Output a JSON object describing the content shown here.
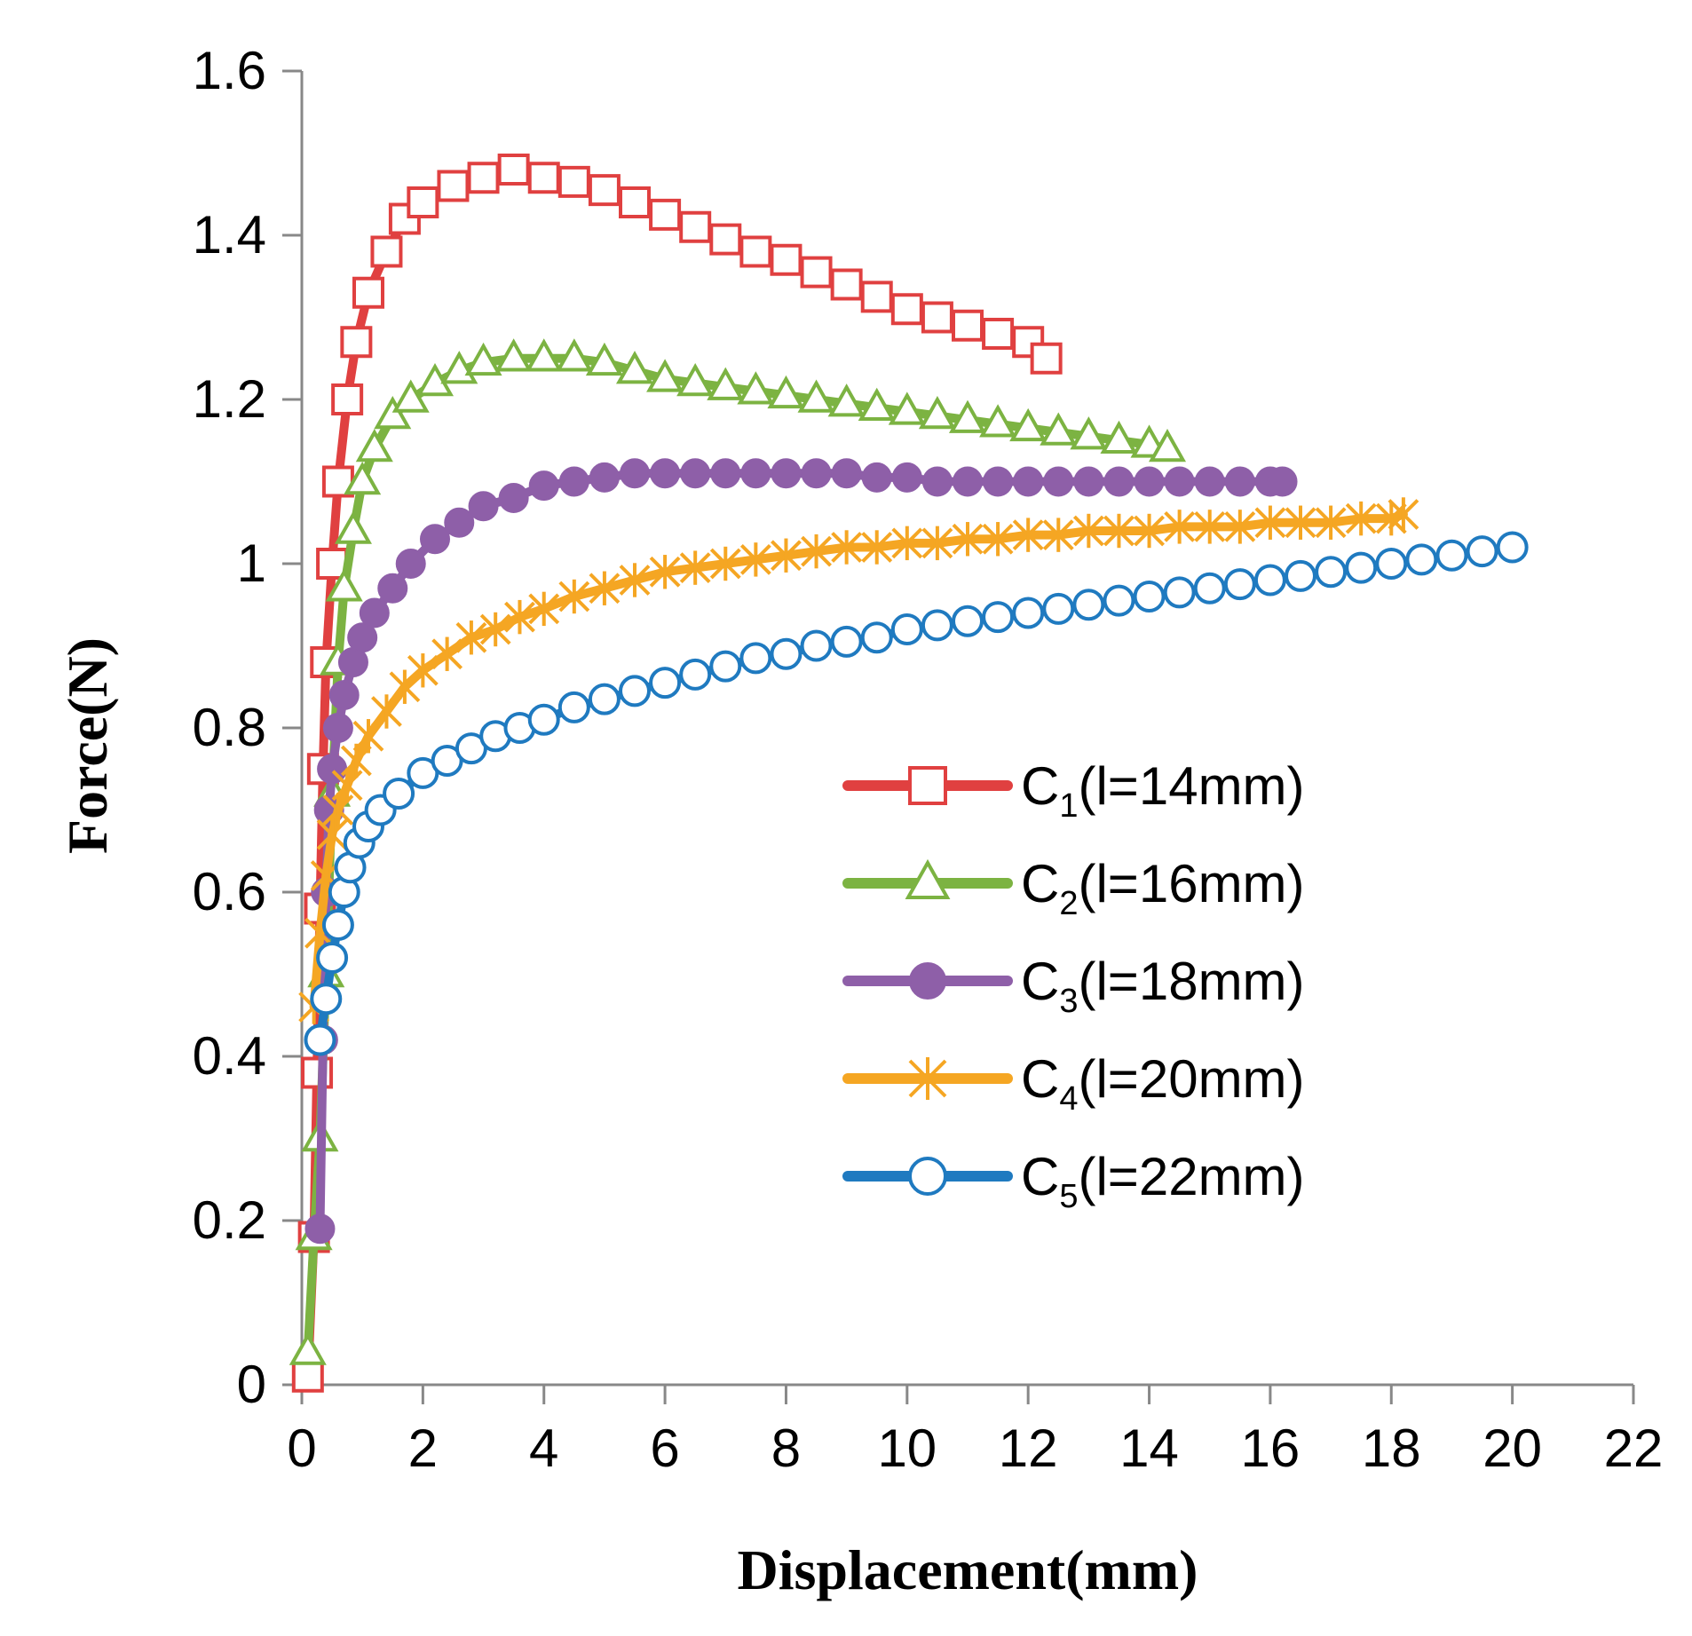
{
  "chart_data": {
    "type": "line",
    "title": "",
    "xlabel": "Displacement(mm)",
    "ylabel": "Force(N)",
    "xlim": [
      0,
      22
    ],
    "ylim": [
      0,
      1.6
    ],
    "xticks": [
      "0",
      "2",
      "4",
      "6",
      "8",
      "10",
      "12",
      "14",
      "16",
      "18",
      "20",
      "22"
    ],
    "yticks": [
      "0",
      "0.2",
      "0.4",
      "0.6",
      "0.8",
      "1",
      "1.2",
      "1.4",
      "1.6"
    ],
    "grid": false,
    "legend_position": "right-center",
    "series": [
      {
        "name": "C1(l=14mm)",
        "legend_base": "C",
        "legend_sub": "1",
        "legend_rest": "(l=14mm)",
        "color": "#e04040",
        "marker": "square-open",
        "x": [
          0.1,
          0.2,
          0.25,
          0.3,
          0.35,
          0.4,
          0.5,
          0.6,
          0.75,
          0.9,
          1.1,
          1.4,
          1.7,
          2.0,
          2.5,
          3.0,
          3.5,
          4.0,
          4.5,
          5.0,
          5.5,
          6.0,
          6.5,
          7.0,
          7.5,
          8.0,
          8.5,
          9.0,
          9.5,
          10.0,
          10.5,
          11.0,
          11.5,
          12.0,
          12.3
        ],
        "y": [
          0.01,
          0.18,
          0.38,
          0.58,
          0.75,
          0.88,
          1.0,
          1.1,
          1.2,
          1.27,
          1.33,
          1.38,
          1.42,
          1.44,
          1.46,
          1.47,
          1.48,
          1.47,
          1.465,
          1.455,
          1.44,
          1.425,
          1.41,
          1.395,
          1.38,
          1.37,
          1.355,
          1.34,
          1.325,
          1.31,
          1.3,
          1.29,
          1.28,
          1.27,
          1.25
        ]
      },
      {
        "name": "C2(l=16mm)",
        "legend_base": "C",
        "legend_sub": "2",
        "legend_rest": "(l=16mm)",
        "color": "#7cb342",
        "marker": "triangle-open",
        "x": [
          0.1,
          0.2,
          0.3,
          0.4,
          0.5,
          0.6,
          0.7,
          0.85,
          1.0,
          1.2,
          1.5,
          1.8,
          2.2,
          2.6,
          3.0,
          3.5,
          4.0,
          4.5,
          5.0,
          5.5,
          6.0,
          6.5,
          7.0,
          7.5,
          8.0,
          8.5,
          9.0,
          9.5,
          10.0,
          10.5,
          11.0,
          11.5,
          12.0,
          12.5,
          13.0,
          13.5,
          14.0,
          14.3
        ],
        "y": [
          0.04,
          0.18,
          0.3,
          0.5,
          0.72,
          0.88,
          0.97,
          1.04,
          1.1,
          1.14,
          1.18,
          1.2,
          1.22,
          1.235,
          1.245,
          1.25,
          1.25,
          1.25,
          1.245,
          1.235,
          1.225,
          1.22,
          1.215,
          1.21,
          1.205,
          1.2,
          1.195,
          1.19,
          1.185,
          1.18,
          1.175,
          1.17,
          1.165,
          1.16,
          1.155,
          1.15,
          1.145,
          1.14
        ]
      },
      {
        "name": "C3(l=18mm)",
        "legend_base": "C",
        "legend_sub": "3",
        "legend_rest": "(l=18mm)",
        "color": "#8e5fa8",
        "marker": "circle-filled",
        "x": [
          0.3,
          0.35,
          0.4,
          0.45,
          0.5,
          0.6,
          0.7,
          0.85,
          1.0,
          1.2,
          1.5,
          1.8,
          2.2,
          2.6,
          3.0,
          3.5,
          4.0,
          4.5,
          5.0,
          5.5,
          6.0,
          6.5,
          7.0,
          7.5,
          8.0,
          8.5,
          9.0,
          9.5,
          10.0,
          10.5,
          11.0,
          11.5,
          12.0,
          12.5,
          13.0,
          13.5,
          14.0,
          14.5,
          15.0,
          15.5,
          16.0,
          16.2
        ],
        "y": [
          0.19,
          0.42,
          0.6,
          0.7,
          0.75,
          0.8,
          0.84,
          0.88,
          0.91,
          0.94,
          0.97,
          1.0,
          1.03,
          1.05,
          1.07,
          1.08,
          1.095,
          1.1,
          1.105,
          1.11,
          1.11,
          1.11,
          1.11,
          1.11,
          1.11,
          1.11,
          1.11,
          1.105,
          1.105,
          1.1,
          1.1,
          1.1,
          1.1,
          1.1,
          1.1,
          1.1,
          1.1,
          1.1,
          1.1,
          1.1,
          1.1,
          1.1
        ]
      },
      {
        "name": "C4(l=20mm)",
        "legend_base": "C",
        "legend_sub": "4",
        "legend_rest": "(l=20mm)",
        "color": "#f5a623",
        "marker": "star",
        "x": [
          0.2,
          0.3,
          0.4,
          0.5,
          0.6,
          0.75,
          0.9,
          1.1,
          1.4,
          1.7,
          2.0,
          2.4,
          2.8,
          3.2,
          3.6,
          4.0,
          4.5,
          5.0,
          5.5,
          6.0,
          6.5,
          7.0,
          7.5,
          8.0,
          8.5,
          9.0,
          9.5,
          10.0,
          10.5,
          11.0,
          11.5,
          12.0,
          12.5,
          13.0,
          13.5,
          14.0,
          14.5,
          15.0,
          15.5,
          16.0,
          16.5,
          17.0,
          17.5,
          18.0,
          18.2
        ],
        "y": [
          0.46,
          0.55,
          0.62,
          0.67,
          0.7,
          0.73,
          0.76,
          0.79,
          0.82,
          0.85,
          0.87,
          0.89,
          0.91,
          0.92,
          0.935,
          0.945,
          0.96,
          0.97,
          0.98,
          0.99,
          0.995,
          1.0,
          1.005,
          1.01,
          1.015,
          1.02,
          1.02,
          1.025,
          1.025,
          1.03,
          1.03,
          1.035,
          1.035,
          1.04,
          1.04,
          1.04,
          1.045,
          1.045,
          1.045,
          1.05,
          1.05,
          1.05,
          1.055,
          1.055,
          1.06
        ]
      },
      {
        "name": "C5(l=22mm)",
        "legend_base": "C",
        "legend_sub": "5",
        "legend_rest": "(l=22mm)",
        "color": "#1f7ac0",
        "marker": "circle-open",
        "x": [
          0.3,
          0.4,
          0.5,
          0.6,
          0.7,
          0.8,
          0.95,
          1.1,
          1.3,
          1.6,
          2.0,
          2.4,
          2.8,
          3.2,
          3.6,
          4.0,
          4.5,
          5.0,
          5.5,
          6.0,
          6.5,
          7.0,
          7.5,
          8.0,
          8.5,
          9.0,
          9.5,
          10.0,
          10.5,
          11.0,
          11.5,
          12.0,
          12.5,
          13.0,
          13.5,
          14.0,
          14.5,
          15.0,
          15.5,
          16.0,
          16.5,
          17.0,
          17.5,
          18.0,
          18.5,
          19.0,
          19.5,
          20.0
        ],
        "y": [
          0.42,
          0.47,
          0.52,
          0.56,
          0.6,
          0.63,
          0.66,
          0.68,
          0.7,
          0.72,
          0.745,
          0.76,
          0.775,
          0.79,
          0.8,
          0.81,
          0.825,
          0.835,
          0.845,
          0.855,
          0.865,
          0.875,
          0.885,
          0.89,
          0.9,
          0.905,
          0.91,
          0.92,
          0.925,
          0.93,
          0.935,
          0.94,
          0.945,
          0.95,
          0.955,
          0.96,
          0.965,
          0.97,
          0.975,
          0.98,
          0.985,
          0.99,
          0.995,
          1.0,
          1.005,
          1.01,
          1.015,
          1.02
        ]
      }
    ]
  }
}
